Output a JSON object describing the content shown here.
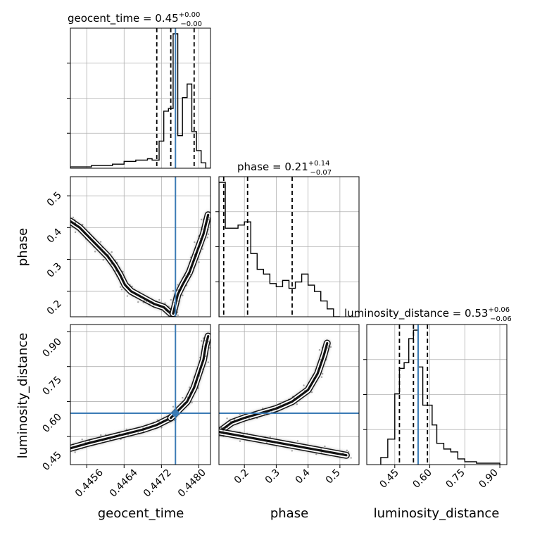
{
  "colors": {
    "truth": "#3b7bb5",
    "hist": "#000000",
    "grid": "#b0b0b0",
    "quantile": "#000000"
  },
  "chart_data": {
    "type": "corner",
    "parameters": [
      "geocent_time",
      "phase",
      "luminosity_distance"
    ],
    "truths": {
      "geocent_time": 0.4475,
      "phase": null,
      "luminosity_distance": 0.55
    },
    "ranges": {
      "geocent_time": [
        0.44525,
        0.44825
      ],
      "phase": [
        0.12,
        0.56
      ],
      "luminosity_distance": [
        0.33,
        0.93
      ]
    },
    "grid": true,
    "titles": {
      "geocent_time": {
        "prefix": "geocent_time = 0.45",
        "sup": "+0.00",
        "sub": "−0.00"
      },
      "phase": {
        "prefix": "phase = 0.21",
        "sup": "+0.14",
        "sub": "−0.07"
      },
      "luminosity_distance": {
        "prefix": "luminosity_distance = 0.53",
        "sup": "+0.06",
        "sub": "−0.06"
      }
    },
    "axis_labels": {
      "geocent_time": "geocent_time",
      "phase": "phase",
      "luminosity_distance": "luminosity_distance"
    },
    "ticks": {
      "geocent_time": [
        "0.4456",
        "0.4464",
        "0.4472",
        "0.4480"
      ],
      "phase": [
        "0.2",
        "0.3",
        "0.4",
        "0.5"
      ],
      "luminosity_distance": [
        "0.45",
        "0.60",
        "0.75",
        "0.90"
      ]
    },
    "quantiles": {
      "geocent_time": [
        0.4471,
        0.4474,
        0.4479
      ],
      "phase": [
        0.135,
        0.21,
        0.35
      ],
      "luminosity_distance": [
        0.47,
        0.53,
        0.59
      ]
    },
    "hist_1d": {
      "geocent_time": {
        "edges": [
          0.44525,
          0.4457,
          0.44615,
          0.4464,
          0.44665,
          0.4469,
          0.447,
          0.44715,
          0.44725,
          0.44735,
          0.44745,
          0.44755,
          0.44765,
          0.44775,
          0.44785,
          0.44795,
          0.44805,
          0.44815,
          0.44825
        ],
        "counts": [
          1,
          2,
          3,
          5,
          6,
          7,
          6,
          20,
          42,
          44,
          99,
          24,
          52,
          62,
          27,
          13,
          4,
          0
        ]
      },
      "phase": {
        "edges": [
          0.12,
          0.14,
          0.16,
          0.18,
          0.2,
          0.22,
          0.24,
          0.26,
          0.28,
          0.3,
          0.32,
          0.34,
          0.36,
          0.38,
          0.4,
          0.42,
          0.44,
          0.46,
          0.48,
          0.5
        ],
        "counts": [
          85,
          56,
          56,
          58,
          60,
          40,
          30,
          27,
          21,
          19,
          23,
          18,
          22,
          27,
          20,
          16,
          10,
          5,
          0
        ]
      },
      "luminosity_distance": {
        "edges": [
          0.39,
          0.42,
          0.45,
          0.47,
          0.49,
          0.51,
          0.53,
          0.55,
          0.57,
          0.59,
          0.61,
          0.63,
          0.66,
          0.69,
          0.72,
          0.75,
          0.8,
          0.9
        ],
        "counts": [
          5,
          18,
          50,
          68,
          72,
          89,
          95,
          69,
          42,
          42,
          28,
          15,
          11,
          9,
          4,
          2,
          1
        ]
      }
    },
    "joint": {
      "phase_vs_geocent_time": {
        "branch_a": [
          [
            0.44525,
            0.42
          ],
          [
            0.44545,
            0.4
          ],
          [
            0.44565,
            0.37
          ],
          [
            0.44585,
            0.34
          ],
          [
            0.44605,
            0.31
          ],
          [
            0.4462,
            0.28
          ],
          [
            0.44632,
            0.25
          ],
          [
            0.44642,
            0.22
          ],
          [
            0.44655,
            0.2
          ],
          [
            0.4468,
            0.18
          ],
          [
            0.44705,
            0.16
          ],
          [
            0.44725,
            0.15
          ],
          [
            0.4474,
            0.13
          ]
        ],
        "branch_b": [
          [
            0.44745,
            0.13
          ],
          [
            0.4475,
            0.16
          ],
          [
            0.44755,
            0.19
          ],
          [
            0.44765,
            0.22
          ],
          [
            0.4478,
            0.26
          ],
          [
            0.4479,
            0.3
          ],
          [
            0.448,
            0.34
          ],
          [
            0.4481,
            0.38
          ],
          [
            0.44815,
            0.41
          ],
          [
            0.4482,
            0.44
          ]
        ]
      },
      "luminosity_distance_vs_geocent_time": {
        "branch_a": [
          [
            0.44525,
            0.4
          ],
          [
            0.4456,
            0.42
          ],
          [
            0.446,
            0.44
          ],
          [
            0.4464,
            0.46
          ],
          [
            0.4468,
            0.48
          ],
          [
            0.4471,
            0.5
          ],
          [
            0.4474,
            0.53
          ]
        ],
        "branch_b": [
          [
            0.4474,
            0.53
          ],
          [
            0.44755,
            0.56
          ],
          [
            0.44775,
            0.6
          ],
          [
            0.4479,
            0.66
          ],
          [
            0.448,
            0.72
          ],
          [
            0.4481,
            0.78
          ],
          [
            0.44815,
            0.84
          ],
          [
            0.4482,
            0.88
          ]
        ]
      },
      "luminosity_distance_vs_phase": {
        "branch_a": [
          [
            0.12,
            0.47
          ],
          [
            0.16,
            0.51
          ],
          [
            0.2,
            0.53
          ],
          [
            0.25,
            0.55
          ],
          [
            0.3,
            0.57
          ],
          [
            0.35,
            0.6
          ],
          [
            0.4,
            0.65
          ],
          [
            0.43,
            0.72
          ],
          [
            0.45,
            0.8
          ],
          [
            0.46,
            0.85
          ]
        ],
        "branch_b": [
          [
            0.12,
            0.47
          ],
          [
            0.2,
            0.45
          ],
          [
            0.28,
            0.43
          ],
          [
            0.36,
            0.41
          ],
          [
            0.44,
            0.39
          ],
          [
            0.52,
            0.37
          ]
        ]
      }
    }
  }
}
